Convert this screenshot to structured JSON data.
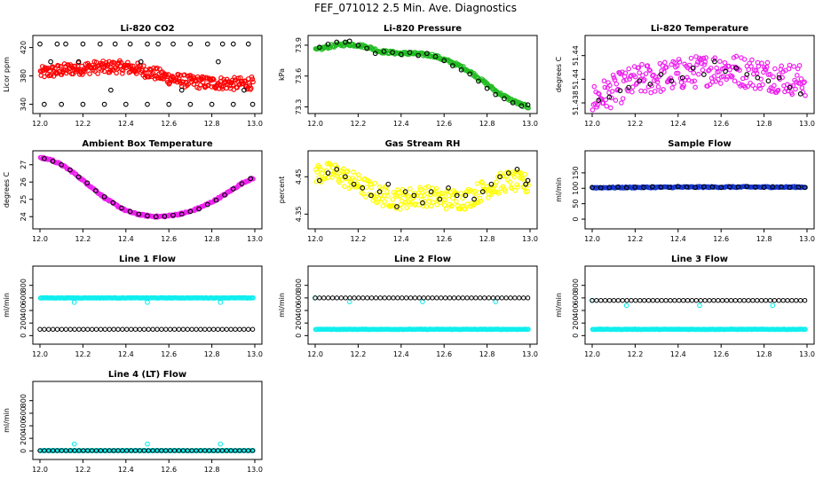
{
  "title": "FEF_071012  2.5 Min. Ave. Diagnostics",
  "colors": {
    "black": "#000000",
    "red": "#ff0000",
    "green": "#22bb22",
    "magenta": "#ee22ee",
    "yellow": "#ffff00",
    "blue": "#1133cc",
    "cyan": "#11eeee"
  },
  "chart_data": [
    {
      "id": "co2",
      "type": "scatter",
      "title": "Li-820 CO2",
      "ylabel": "Licor ppm",
      "xlim": [
        12.0,
        13.0
      ],
      "xticks": [
        "12.0",
        "12.2",
        "12.4",
        "12.6",
        "12.8",
        "13.0"
      ],
      "ylim": [
        332,
        432
      ],
      "yticks": [
        "340",
        "380",
        "420"
      ],
      "series": [
        {
          "color": "red",
          "style": "dense",
          "x": [
            12.0,
            12.05,
            12.1,
            12.15,
            12.2,
            12.25,
            12.3,
            12.35,
            12.4,
            12.45,
            12.5,
            12.55,
            12.6,
            12.65,
            12.7,
            12.75,
            12.8,
            12.85,
            12.9,
            12.95,
            12.99
          ],
          "y": [
            384,
            386,
            388,
            390,
            391,
            392,
            392,
            393,
            392,
            390,
            386,
            382,
            377,
            374,
            372,
            371,
            370,
            370,
            369,
            369,
            370
          ],
          "spread": 9,
          "count": 320
        },
        {
          "color": "black",
          "style": "points",
          "x": [
            12.0,
            12.08,
            12.12,
            12.2,
            12.28,
            12.35,
            12.42,
            12.5,
            12.55,
            12.62,
            12.7,
            12.78,
            12.85,
            12.9,
            12.97,
            12.02,
            12.1,
            12.2,
            12.3,
            12.4,
            12.5,
            12.6,
            12.7,
            12.8,
            12.9,
            12.99,
            12.05,
            12.18,
            12.33,
            12.47,
            12.66,
            12.83,
            12.95
          ],
          "y": [
            425,
            425,
            425,
            425,
            425,
            425,
            425,
            425,
            425,
            425,
            425,
            425,
            425,
            425,
            425,
            340,
            340,
            340,
            340,
            340,
            340,
            340,
            340,
            340,
            340,
            340,
            400,
            400,
            360,
            400,
            360,
            400,
            360
          ]
        }
      ]
    },
    {
      "id": "pressure",
      "type": "scatter",
      "title": "Li-820 Pressure",
      "ylabel": "kPa",
      "xlim": [
        12.0,
        13.0
      ],
      "xticks": [
        "12.0",
        "12.2",
        "12.4",
        "12.6",
        "12.8",
        "13.0"
      ],
      "ylim": [
        73.27,
        73.96
      ],
      "yticks": [
        "73.3",
        "73.6",
        "73.9"
      ],
      "series": [
        {
          "color": "green",
          "style": "dense",
          "x": [
            12.0,
            12.05,
            12.1,
            12.15,
            12.2,
            12.25,
            12.3,
            12.35,
            12.4,
            12.45,
            12.5,
            12.55,
            12.6,
            12.65,
            12.7,
            12.75,
            12.8,
            12.85,
            12.9,
            12.95,
            12.99
          ],
          "y": [
            73.85,
            73.88,
            73.9,
            73.91,
            73.9,
            73.88,
            73.84,
            73.83,
            73.82,
            73.82,
            73.81,
            73.8,
            73.76,
            73.72,
            73.67,
            73.6,
            73.52,
            73.44,
            73.38,
            73.33,
            73.3
          ],
          "spread": 0.015,
          "count": 240
        },
        {
          "color": "black",
          "style": "points",
          "x": [
            12.02,
            12.06,
            12.1,
            12.14,
            12.16,
            12.2,
            12.24,
            12.28,
            12.32,
            12.36,
            12.4,
            12.44,
            12.48,
            12.52,
            12.56,
            12.6,
            12.64,
            12.68,
            12.72,
            12.76,
            12.8,
            12.84,
            12.88,
            12.92,
            12.96,
            12.99
          ],
          "y": [
            73.88,
            73.91,
            73.93,
            73.93,
            73.94,
            73.9,
            73.87,
            73.82,
            73.84,
            73.83,
            73.81,
            73.83,
            73.8,
            73.82,
            73.79,
            73.75,
            73.7,
            73.66,
            73.62,
            73.55,
            73.48,
            73.42,
            73.38,
            73.34,
            73.31,
            73.32
          ]
        }
      ]
    },
    {
      "id": "licor-temp",
      "type": "scatter",
      "title": "Li-820 Temperature",
      "ylabel": "degrees C",
      "xlim": [
        12.0,
        13.0
      ],
      "xticks": [
        "12.0",
        "12.2",
        "12.4",
        "12.6",
        "12.8",
        "13.0"
      ],
      "ylim": [
        51.435,
        51.446
      ],
      "yticks": [
        "51.438",
        "51.44",
        "51.44"
      ],
      "series": [
        {
          "color": "magenta",
          "style": "scatter",
          "x": [
            12.0,
            12.2,
            12.4,
            12.6,
            12.8,
            12.99
          ],
          "y": [
            51.4365,
            51.4395,
            51.4405,
            51.4415,
            51.4405,
            51.4395
          ],
          "spread": 0.0025,
          "count": 260
        },
        {
          "color": "black",
          "style": "points",
          "x": [
            12.03,
            12.08,
            12.13,
            12.17,
            12.22,
            12.27,
            12.32,
            12.37,
            12.42,
            12.47,
            12.52,
            12.57,
            12.62,
            12.67,
            12.72,
            12.77,
            12.82,
            12.87,
            12.92,
            12.97
          ],
          "y": [
            51.4365,
            51.437,
            51.438,
            51.4385,
            51.4395,
            51.439,
            51.4405,
            51.4395,
            51.44,
            51.4415,
            51.4405,
            51.4425,
            51.441,
            51.4415,
            51.4405,
            51.44,
            51.4395,
            51.44,
            51.4385,
            51.4375
          ]
        }
      ]
    },
    {
      "id": "box-temp",
      "type": "scatter",
      "title": "Ambient Box Temperature",
      "ylabel": "degrees C",
      "xlim": [
        12.0,
        13.0
      ],
      "xticks": [
        "12.0",
        "12.2",
        "12.4",
        "12.6",
        "12.8",
        "13.0"
      ],
      "ylim": [
        23.5,
        27.6
      ],
      "yticks": [
        "24",
        "25",
        "26",
        "27"
      ],
      "series": [
        {
          "color": "magenta",
          "style": "dense",
          "x": [
            12.0,
            12.05,
            12.1,
            12.15,
            12.2,
            12.25,
            12.3,
            12.35,
            12.4,
            12.45,
            12.5,
            12.55,
            12.6,
            12.65,
            12.7,
            12.75,
            12.8,
            12.85,
            12.9,
            12.95,
            12.99
          ],
          "y": [
            27.4,
            27.3,
            27.0,
            26.6,
            26.1,
            25.6,
            25.1,
            24.7,
            24.35,
            24.15,
            24.05,
            24.0,
            24.05,
            24.15,
            24.3,
            24.55,
            24.85,
            25.2,
            25.6,
            26.0,
            26.2
          ],
          "spread": 0.05,
          "count": 240
        },
        {
          "color": "black",
          "style": "points",
          "x": [
            12.02,
            12.06,
            12.1,
            12.14,
            12.18,
            12.22,
            12.26,
            12.3,
            12.34,
            12.38,
            12.42,
            12.46,
            12.5,
            12.54,
            12.58,
            12.62,
            12.66,
            12.7,
            12.74,
            12.78,
            12.82,
            12.86,
            12.9,
            12.94,
            12.98
          ],
          "y": [
            27.35,
            27.2,
            27.0,
            26.7,
            26.3,
            25.95,
            25.5,
            25.15,
            24.8,
            24.5,
            24.3,
            24.15,
            24.05,
            24.0,
            24.02,
            24.08,
            24.15,
            24.3,
            24.45,
            24.7,
            24.95,
            25.25,
            25.6,
            25.9,
            26.2
          ]
        }
      ]
    },
    {
      "id": "rh",
      "type": "scatter",
      "title": "Gas Stream RH",
      "ylabel": "percent",
      "xlim": [
        12.0,
        13.0
      ],
      "xticks": [
        "12.0",
        "12.2",
        "12.4",
        "12.6",
        "12.8",
        "13.0"
      ],
      "ylim": [
        4.32,
        4.51
      ],
      "yticks": [
        "4.35",
        "4.45"
      ],
      "series": [
        {
          "color": "yellow",
          "style": "scatter",
          "x": [
            12.0,
            12.1,
            12.2,
            12.3,
            12.4,
            12.5,
            12.6,
            12.7,
            12.8,
            12.9,
            12.99
          ],
          "y": [
            4.46,
            4.46,
            4.43,
            4.4,
            4.39,
            4.4,
            4.39,
            4.39,
            4.42,
            4.44,
            4.43
          ],
          "spread": 0.028,
          "count": 260
        },
        {
          "color": "black",
          "style": "points",
          "x": [
            12.02,
            12.06,
            12.1,
            12.14,
            12.18,
            12.22,
            12.26,
            12.3,
            12.34,
            12.38,
            12.42,
            12.46,
            12.5,
            12.54,
            12.58,
            12.62,
            12.66,
            12.7,
            12.74,
            12.78,
            12.82,
            12.86,
            12.9,
            12.94,
            12.98,
            12.99
          ],
          "y": [
            4.44,
            4.46,
            4.47,
            4.45,
            4.43,
            4.42,
            4.4,
            4.41,
            4.43,
            4.37,
            4.41,
            4.4,
            4.38,
            4.41,
            4.39,
            4.42,
            4.4,
            4.4,
            4.39,
            4.41,
            4.43,
            4.45,
            4.46,
            4.47,
            4.43,
            4.44
          ]
        }
      ]
    },
    {
      "id": "sample-flow",
      "type": "scatter",
      "title": "Sample Flow",
      "ylabel": "ml/min",
      "xlim": [
        12.0,
        13.0
      ],
      "xticks": [
        "12.0",
        "12.2",
        "12.4",
        "12.6",
        "12.8",
        "13.0"
      ],
      "ylim": [
        -20,
        210
      ],
      "yticks": [
        "0",
        "50",
        "100",
        "150"
      ],
      "series": [
        {
          "color": "blue",
          "style": "dense",
          "x": [
            12.0,
            12.5,
            12.99
          ],
          "y": [
            102,
            104,
            104
          ],
          "spread": 2,
          "count": 180
        },
        {
          "color": "black",
          "style": "points",
          "x": [
            12.0,
            12.04,
            12.08,
            12.12,
            12.16,
            12.2,
            12.24,
            12.28,
            12.32,
            12.36,
            12.4,
            12.44,
            12.48,
            12.52,
            12.56,
            12.6,
            12.64,
            12.68,
            12.72,
            12.76,
            12.8,
            12.84,
            12.88,
            12.92,
            12.96,
            12.99
          ],
          "y": [
            103,
            102,
            103,
            104,
            102,
            104,
            103,
            105,
            104,
            103,
            106,
            104,
            103,
            105,
            104,
            103,
            105,
            104,
            106,
            104,
            103,
            105,
            104,
            103,
            104,
            103
          ]
        }
      ]
    },
    {
      "id": "line1",
      "type": "scatter",
      "title": "Line 1 Flow",
      "ylabel": "ml/min",
      "xlim": [
        12.0,
        13.0
      ],
      "xticks": [
        "12.0",
        "12.2",
        "12.4",
        "12.6",
        "12.8",
        "13.0"
      ],
      "ylim": [
        -80,
        1050
      ],
      "yticks": [
        "0",
        "200",
        "400",
        "600",
        "800"
      ],
      "series": [
        {
          "color": "cyan",
          "style": "dense",
          "x": [
            12.0,
            12.99
          ],
          "y": [
            600,
            600
          ],
          "spread": 4,
          "count": 200
        },
        {
          "color": "cyan",
          "style": "points",
          "x": [
            12.16,
            12.5,
            12.84
          ],
          "y": [
            530,
            530,
            530
          ]
        },
        {
          "color": "black",
          "style": "hline",
          "x": [
            12.0,
            12.99
          ],
          "y": [
            100,
            100
          ],
          "count": 50
        }
      ]
    },
    {
      "id": "line2",
      "type": "scatter",
      "title": "Line 2 Flow",
      "ylabel": "ml/min",
      "xlim": [
        12.0,
        13.0
      ],
      "xticks": [
        "12.0",
        "12.2",
        "12.4",
        "12.6",
        "12.8",
        "13.0"
      ],
      "ylim": [
        -80,
        1050
      ],
      "yticks": [
        "0",
        "200",
        "400",
        "600",
        "800"
      ],
      "series": [
        {
          "color": "cyan",
          "style": "dense",
          "x": [
            12.0,
            12.99
          ],
          "y": [
            100,
            100
          ],
          "spread": 4,
          "count": 200
        },
        {
          "color": "cyan",
          "style": "points",
          "x": [
            12.0,
            12.16,
            12.5,
            12.84
          ],
          "y": [
            600,
            540,
            540,
            540
          ]
        },
        {
          "color": "black",
          "style": "hline",
          "x": [
            12.0,
            12.99
          ],
          "y": [
            600,
            600
          ],
          "count": 50
        }
      ]
    },
    {
      "id": "line3",
      "type": "scatter",
      "title": "Line 3 Flow",
      "ylabel": "ml/min",
      "xlim": [
        12.0,
        13.0
      ],
      "xticks": [
        "12.0",
        "12.2",
        "12.4",
        "12.6",
        "12.8",
        "13.0"
      ],
      "ylim": [
        -80,
        1050
      ],
      "yticks": [
        "0",
        "200",
        "400",
        "600",
        "800"
      ],
      "series": [
        {
          "color": "cyan",
          "style": "dense",
          "x": [
            12.0,
            12.99
          ],
          "y": [
            100,
            100
          ],
          "spread": 4,
          "count": 200
        },
        {
          "color": "cyan",
          "style": "points",
          "x": [
            12.0,
            12.16,
            12.5,
            12.84
          ],
          "y": [
            560,
            480,
            480,
            480
          ]
        },
        {
          "color": "black",
          "style": "hline",
          "x": [
            12.0,
            12.99
          ],
          "y": [
            560,
            560
          ],
          "count": 50
        }
      ]
    },
    {
      "id": "line4",
      "type": "scatter",
      "title": "Line 4 (LT) Flow",
      "ylabel": "ml/min",
      "xlim": [
        12.0,
        13.0
      ],
      "xticks": [
        "12.0",
        "12.2",
        "12.4",
        "12.6",
        "12.8",
        "13.0"
      ],
      "ylim": [
        -80,
        1050
      ],
      "yticks": [
        "0",
        "200",
        "400",
        "600",
        "800"
      ],
      "series": [
        {
          "color": "cyan",
          "style": "dense",
          "x": [
            12.0,
            12.99
          ],
          "y": [
            5,
            5
          ],
          "spread": 2,
          "count": 200
        },
        {
          "color": "cyan",
          "style": "points",
          "x": [
            12.16,
            12.5,
            12.84
          ],
          "y": [
            110,
            110,
            110
          ]
        },
        {
          "color": "black",
          "style": "hline",
          "x": [
            12.0,
            12.99
          ],
          "y": [
            5,
            5
          ],
          "count": 50
        }
      ]
    }
  ]
}
